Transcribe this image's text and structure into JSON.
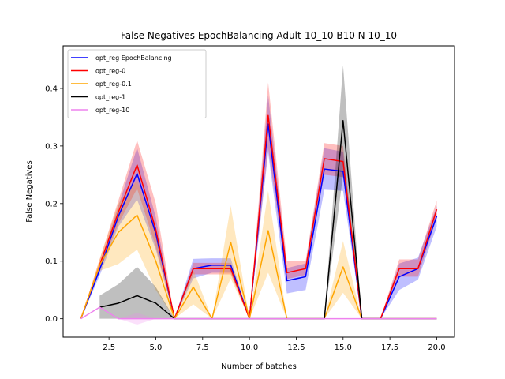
{
  "chart_data": {
    "type": "line",
    "title": "False Negatives EpochBalancing Adult-10_10 B10 N 10_10",
    "xlabel": "Number of batches",
    "ylabel": "False Negatives",
    "xlim": [
      0.05,
      20.95
    ],
    "ylim": [
      -0.032,
      0.474
    ],
    "xticks": [
      2.5,
      5.0,
      7.5,
      10.0,
      12.5,
      15.0,
      17.5,
      20.0
    ],
    "xtick_labels": [
      "2.5",
      "5.0",
      "7.5",
      "10.0",
      "12.5",
      "15.0",
      "17.5",
      "20.0"
    ],
    "yticks": [
      0.0,
      0.1,
      0.2,
      0.3,
      0.4
    ],
    "ytick_labels": [
      "0.0",
      "0.1",
      "0.2",
      "0.3",
      "0.4"
    ],
    "legend_position": "top-left",
    "grid": false,
    "x": [
      1,
      2,
      3,
      4,
      5,
      6,
      7,
      8,
      9,
      10,
      11,
      12,
      13,
      14,
      15,
      16,
      17,
      18,
      19,
      20
    ],
    "series": [
      {
        "name": "opt_reg EpochBalancing",
        "color": "#0000ff",
        "values": [
          0.0,
          0.085,
          0.178,
          0.252,
          0.148,
          0.0,
          0.087,
          0.093,
          0.093,
          0.0,
          0.338,
          0.066,
          0.073,
          0.26,
          0.256,
          0.0,
          0.0,
          0.073,
          0.087,
          0.178
        ],
        "lower": [
          0.0,
          0.075,
          0.16,
          0.207,
          0.12,
          0.0,
          0.07,
          0.08,
          0.08,
          0.0,
          0.288,
          0.044,
          0.05,
          0.224,
          0.222,
          0.0,
          0.0,
          0.05,
          0.068,
          0.16
        ],
        "upper": [
          0.0,
          0.095,
          0.196,
          0.297,
          0.176,
          0.0,
          0.104,
          0.105,
          0.105,
          0.0,
          0.388,
          0.088,
          0.096,
          0.296,
          0.29,
          0.0,
          0.0,
          0.096,
          0.106,
          0.196
        ]
      },
      {
        "name": "opt_reg-0",
        "color": "#ff0000",
        "values": [
          0.0,
          0.093,
          0.185,
          0.267,
          0.155,
          0.0,
          0.087,
          0.087,
          0.087,
          0.0,
          0.353,
          0.08,
          0.087,
          0.278,
          0.273,
          0.0,
          0.0,
          0.087,
          0.087,
          0.19
        ],
        "lower": [
          0.0,
          0.083,
          0.165,
          0.226,
          0.125,
          0.0,
          0.077,
          0.077,
          0.077,
          0.0,
          0.296,
          0.069,
          0.076,
          0.25,
          0.246,
          0.0,
          0.0,
          0.073,
          0.073,
          0.175
        ],
        "upper": [
          0.0,
          0.103,
          0.205,
          0.31,
          0.2,
          0.0,
          0.097,
          0.097,
          0.097,
          0.0,
          0.41,
          0.1,
          0.1,
          0.305,
          0.3,
          0.0,
          0.0,
          0.103,
          0.103,
          0.205
        ]
      },
      {
        "name": "opt_reg-0.1",
        "color": "#ffa500",
        "values": [
          0.0,
          0.093,
          0.15,
          0.18,
          0.1,
          0.0,
          0.055,
          0.0,
          0.133,
          0.0,
          0.153,
          0.0,
          0.0,
          0.0,
          0.09,
          0.0,
          0.0,
          0.0,
          0.0,
          0.0
        ],
        "lower": [
          0.0,
          0.083,
          0.095,
          0.12,
          0.05,
          0.0,
          0.025,
          0.0,
          0.07,
          0.0,
          0.08,
          0.0,
          0.0,
          0.0,
          0.045,
          0.0,
          0.0,
          0.0,
          0.0,
          0.0
        ],
        "upper": [
          0.0,
          0.103,
          0.2,
          0.24,
          0.145,
          0.0,
          0.085,
          0.0,
          0.196,
          0.0,
          0.222,
          0.0,
          0.0,
          0.0,
          0.135,
          0.0,
          0.0,
          0.0,
          0.0,
          0.0
        ]
      },
      {
        "name": "opt_reg-1",
        "color": "#000000",
        "values": [
          null,
          0.02,
          0.027,
          0.04,
          0.027,
          0.0,
          0.0,
          0.0,
          0.0,
          0.0,
          0.0,
          0.0,
          0.0,
          0.0,
          0.344,
          0.0,
          0.0,
          0.0,
          0.0,
          0.0
        ],
        "lower": [
          null,
          0.0,
          0.0,
          0.0,
          0.0,
          0.0,
          0.0,
          0.0,
          0.0,
          0.0,
          0.0,
          0.0,
          0.0,
          0.0,
          0.25,
          0.0,
          0.0,
          0.0,
          0.0,
          0.0
        ],
        "upper": [
          null,
          0.04,
          0.06,
          0.09,
          0.055,
          0.0,
          0.0,
          0.0,
          0.0,
          0.0,
          0.0,
          0.0,
          0.0,
          0.0,
          0.44,
          0.0,
          0.0,
          0.0,
          0.0,
          0.0
        ]
      },
      {
        "name": "opt_reg-10",
        "color": "#ee82ee",
        "values": [
          0.0,
          0.02,
          0.0,
          0.0,
          0.0,
          0.0,
          0.0,
          0.0,
          0.0,
          0.0,
          0.0,
          0.0,
          0.0,
          0.0,
          0.0,
          0.0,
          0.0,
          0.0,
          0.0,
          0.0
        ],
        "lower": [
          0.0,
          0.02,
          0.0,
          -0.01,
          0.0,
          0.0,
          0.0,
          0.0,
          0.0,
          0.0,
          0.0,
          0.0,
          0.0,
          0.0,
          0.0,
          0.0,
          0.0,
          0.0,
          0.0,
          0.0
        ],
        "upper": [
          0.0,
          0.02,
          0.0,
          0.01,
          0.0,
          0.0,
          0.0,
          0.0,
          0.0,
          0.0,
          0.0,
          0.0,
          0.0,
          0.0,
          0.0,
          0.0,
          0.0,
          0.0,
          0.0,
          0.0
        ]
      }
    ]
  }
}
